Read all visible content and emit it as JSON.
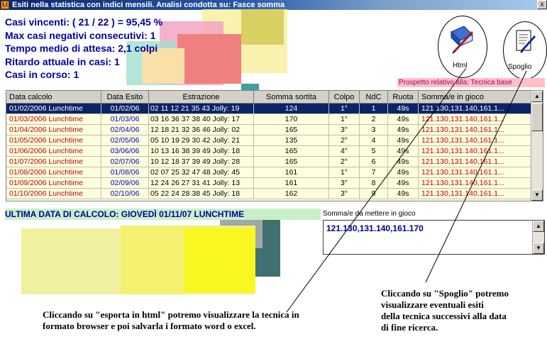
{
  "window": {
    "title": "Esiti nella statistica con indici mensili. Analisi condotta su: Fasce somma",
    "close_label": "x"
  },
  "stats": {
    "casi_vincenti": "Casi vincenti: ( 21 / 22 ) = 95,45 %",
    "max_negativi": "Max casi negativi consecutivi: 1",
    "tempo_medio": "Tempo medio di attesa: 2,1 colpi",
    "ritardo": "Ritardo attuale in casi: 1",
    "in_corso": "Casi in corso: 1"
  },
  "buttons": {
    "html_label": "Html",
    "spoglio_label": "Spoglio"
  },
  "prospetto": "Prospetto relativo alla: Tecnica base",
  "grid": {
    "columns": [
      "Data calcolo",
      "Data Esito",
      "Estrazione",
      "Somma sortita",
      "Colpo",
      "NdC",
      "Ruota",
      "Somma/e in gioco"
    ],
    "rows": [
      {
        "data_calcolo": "01/02/2006 Lunchtime",
        "data_esito": "01/02/06",
        "estrazione": "02 11 12 21 35 43 Jolly: 19",
        "somma": "124",
        "colpo": "1°",
        "ndc": "1",
        "ruota": "49s",
        "in_gioco": "121.130,131.140,161.1..."
      },
      {
        "data_calcolo": "01/03/2006 Lunchtime",
        "data_esito": "01/03/06",
        "estrazione": "03 16 36 37 38 40 Jolly: 17",
        "somma": "170",
        "colpo": "1°",
        "ndc": "2",
        "ruota": "49s",
        "in_gioco": "121.130,131.140,161.1..."
      },
      {
        "data_calcolo": "01/04/2006 Lunchtime",
        "data_esito": "02/04/06",
        "estrazione": "12 18 21 32 36 46 Jolly: 02",
        "somma": "165",
        "colpo": "3°",
        "ndc": "3",
        "ruota": "49s",
        "in_gioco": "121.130,131.140,161.1..."
      },
      {
        "data_calcolo": "01/05/2006 Lunchtime",
        "data_esito": "02/05/06",
        "estrazione": "05 10 19 29 30 42 Jolly: 21",
        "somma": "135",
        "colpo": "2°",
        "ndc": "4",
        "ruota": "49s",
        "in_gioco": "121.130,131.140,161.1..."
      },
      {
        "data_calcolo": "01/06/2006 Lunchtime",
        "data_esito": "03/06/06",
        "estrazione": "10 13 16 38 39 49 Jolly: 18",
        "somma": "165",
        "colpo": "4°",
        "ndc": "5",
        "ruota": "49s",
        "in_gioco": "121.130,131.140,161.1..."
      },
      {
        "data_calcolo": "01/07/2006 Lunchtime",
        "data_esito": "02/07/06",
        "estrazione": "10 12 18 37 39 49 Jolly: 28",
        "somma": "165",
        "colpo": "2°",
        "ndc": "6",
        "ruota": "49s",
        "in_gioco": "121.130,131.140,161.1..."
      },
      {
        "data_calcolo": "01/08/2006 Lunchtime",
        "data_esito": "01/08/06",
        "estrazione": "02 07 25 32 47 48 Jolly: 45",
        "somma": "161",
        "colpo": "1°",
        "ndc": "7",
        "ruota": "49s",
        "in_gioco": "121.130,131.140,161.1..."
      },
      {
        "data_calcolo": "01/09/2006 Lunchtime",
        "data_esito": "02/09/06",
        "estrazione": "12 24 26 27 31 41 Jolly: 13",
        "somma": "161",
        "colpo": "3°",
        "ndc": "8",
        "ruota": "49s",
        "in_gioco": "121.130,131.140,161.1..."
      },
      {
        "data_calcolo": "01/10/2006 Lunchtime",
        "data_esito": "02/10/06",
        "estrazione": "05 22 24 28 38 45 Jolly: 18",
        "somma": "162",
        "colpo": "3°",
        "ndc": "9",
        "ruota": "49s",
        "in_gioco": "121.130,131.140,161.1..."
      }
    ],
    "scroll_up": "▲",
    "scroll_down": "▼"
  },
  "ultima": "ULTIMA DATA DI CALCOLO: GIOVEDÌ 01/11/07 LUNCHTIME",
  "somme": {
    "label": "Somma/e da mettere in gioco",
    "value": "121.130,131.140,161.170",
    "scroll_up": "▲",
    "scroll_down": "▼"
  },
  "notes": {
    "html_line1": "Cliccando su \"esporta in html\" potremo visualizzare la tecnica in",
    "html_line2": "formato browser e poi salvarla i formato word o excel.",
    "spoglio_line1": "Cliccando su \"Spoglio\" potremo",
    "spoglio_line2": "visualizzare eventuali esiti",
    "spoglio_line3": "della tecnica successivi alla data",
    "spoglio_line4": "di fine ricerca."
  },
  "colors": {
    "stats_text": "#0000a0",
    "row_red": "#c00000",
    "row_blue": "#0000c0",
    "selection": "#0a246a",
    "grid_bg": "#ffffe0"
  },
  "icons": {
    "app": "lotto-app-icon",
    "html": "book-pen-icon",
    "spoglio": "document-quill-icon"
  }
}
